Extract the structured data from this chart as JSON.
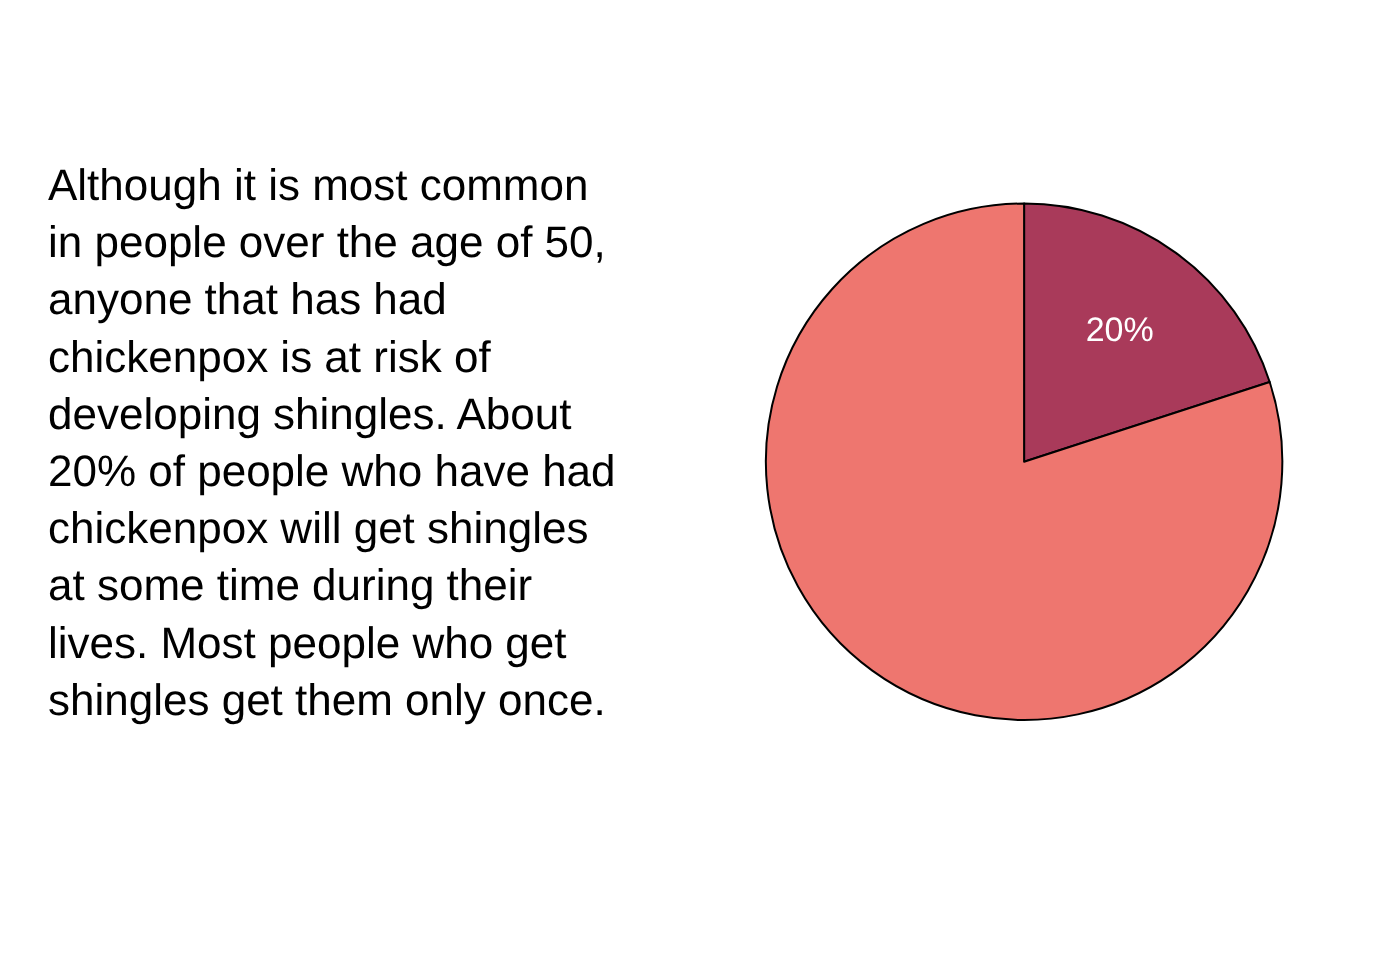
{
  "chart_data": {
    "type": "pie",
    "categories": [
      null,
      null
    ],
    "values": [
      20,
      80
    ],
    "colors": [
      "#a93a5a",
      "#ee766f"
    ],
    "value_labels": [
      "20%",
      null
    ],
    "legend": false,
    "annotations": [
      "Although it is most common\nin people over the age of 50,\nanyone that has had\nchickenpox is at risk of\ndeveloping shingles. About\n20% of people who have had\nchickenpox will get shingles\nat some time during their\nlives. Most people who get\nshingles get them only once."
    ]
  }
}
